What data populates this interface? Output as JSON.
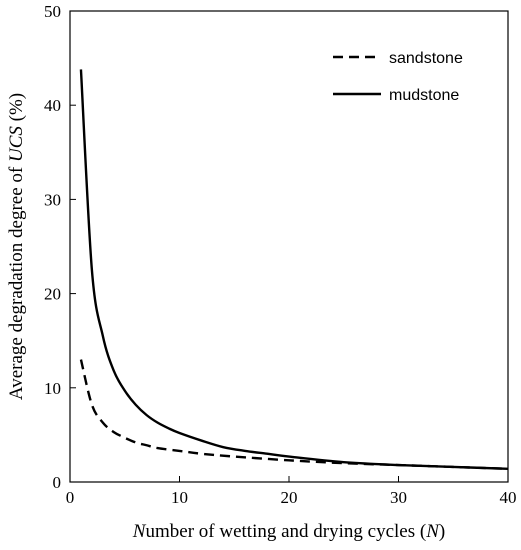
{
  "chart_data": {
    "type": "line",
    "xlabel": "Number of wetting and drying cycles (N)",
    "ylabel": "Average degradation degree of UCS (%)",
    "xlim": [
      0,
      40
    ],
    "ylim": [
      0,
      50
    ],
    "xticks": [
      0,
      10,
      20,
      30,
      40
    ],
    "yticks": [
      0,
      10,
      20,
      30,
      40,
      50
    ],
    "grid": false,
    "legend_position": "top-right",
    "series": [
      {
        "name": "sandstone",
        "style": "dashed",
        "color": "#000000",
        "x": [
          1,
          2,
          3,
          4,
          5,
          6,
          7,
          8,
          10,
          12,
          15,
          20,
          25,
          30,
          35,
          40
        ],
        "y": [
          13.0,
          8.2,
          6.3,
          5.3,
          4.7,
          4.2,
          3.9,
          3.6,
          3.3,
          3.0,
          2.7,
          2.3,
          2.0,
          1.8,
          1.6,
          1.4
        ]
      },
      {
        "name": "mudstone",
        "style": "solid",
        "color": "#000000",
        "x": [
          1,
          2,
          3,
          4,
          5,
          6,
          7,
          8,
          9,
          10,
          12,
          14,
          16,
          18,
          20,
          25,
          30,
          35,
          40
        ],
        "y": [
          43.8,
          22.5,
          15.5,
          11.8,
          9.7,
          8.2,
          7.1,
          6.3,
          5.7,
          5.2,
          4.4,
          3.7,
          3.3,
          3.0,
          2.7,
          2.1,
          1.8,
          1.6,
          1.4
        ]
      }
    ]
  }
}
